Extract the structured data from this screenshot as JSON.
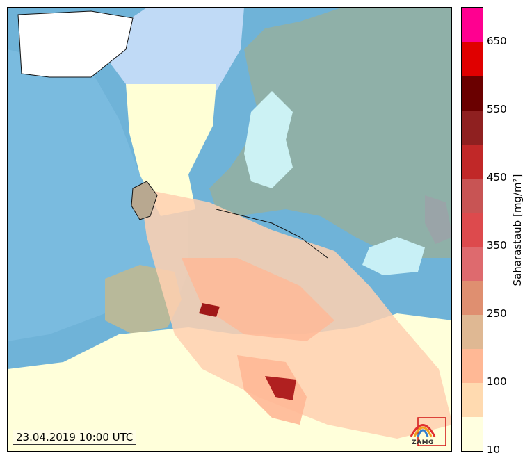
{
  "timestamp": "23.04.2019 10:00 UTC",
  "logo_text": "ZAMG",
  "colorbar": {
    "label": "Saharastaub [mg/m²]",
    "ticks": [
      "10",
      "100",
      "250",
      "350",
      "450",
      "550",
      "650"
    ],
    "colors": [
      "#ffffe0",
      "#ffdab0",
      "#ffb895",
      "#dfb893",
      "#df8f70",
      "#de6a6e",
      "#dd4a4d",
      "#c85454",
      "#c12828",
      "#8f2020",
      "#6a0000",
      "#e00000",
      "#ff0090"
    ]
  },
  "palette": {
    "ocean": "#6fb3d8",
    "land": "#9cb8a8",
    "dust_light": "#ffffd6",
    "dust_medium": "#ffc8a8",
    "dust_dense": "#a01818"
  }
}
